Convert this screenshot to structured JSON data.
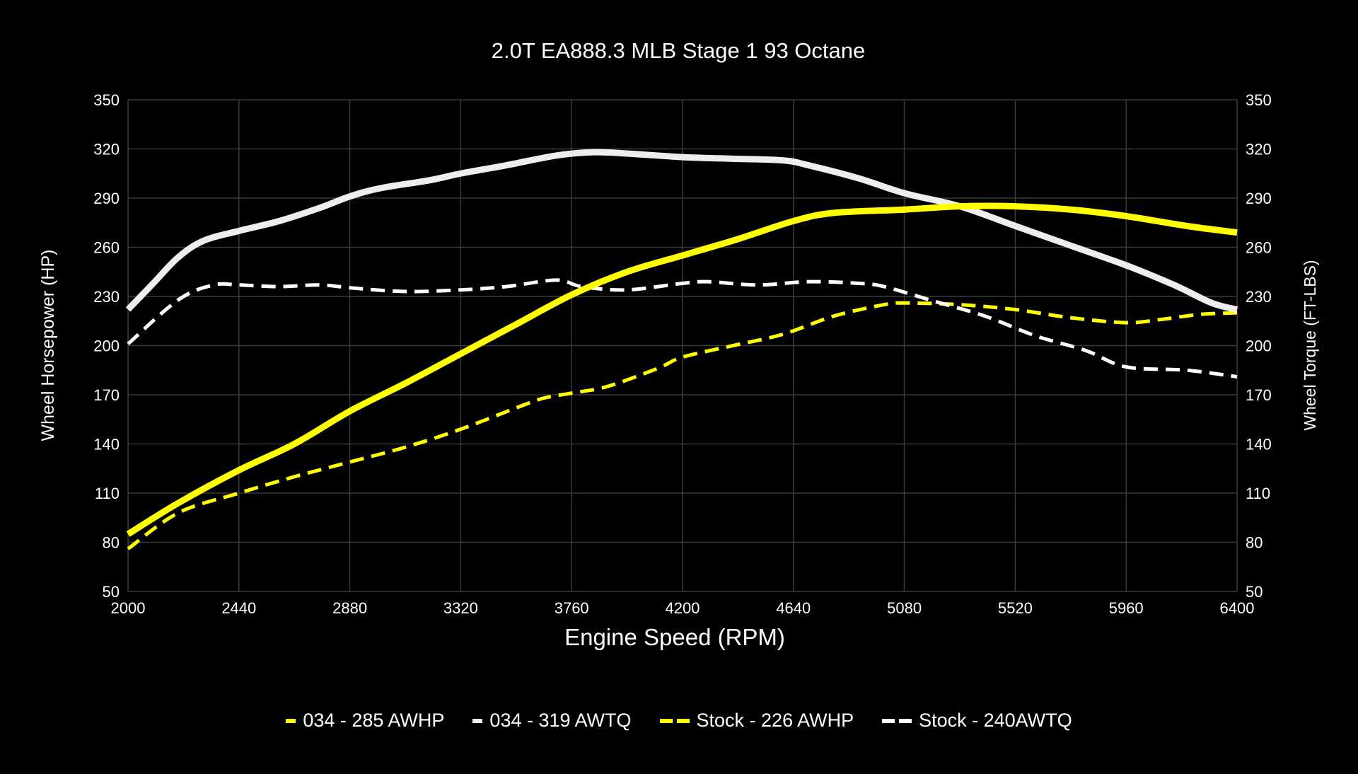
{
  "chart_data": {
    "type": "line",
    "title": "2.0T EA888.3 MLB Stage 1 93 Octane",
    "xlabel": "Engine Speed (RPM)",
    "ylabel": "Wheel Horsepower (HP)",
    "ylabel_right": "Wheel Torque (FT-LBS)",
    "xlim": [
      2000,
      6400
    ],
    "ylim": [
      50,
      350
    ],
    "ylim_right": [
      50,
      350
    ],
    "x_ticks": [
      2000,
      2440,
      2880,
      3320,
      3760,
      4200,
      4640,
      5080,
      5520,
      5960,
      6400
    ],
    "y_ticks": [
      50,
      80,
      110,
      140,
      170,
      200,
      230,
      260,
      290,
      320,
      350
    ],
    "grid": true,
    "legend_position": "bottom",
    "background": "#000000",
    "series": [
      {
        "name": "034 - 285 AWHP",
        "color": "#ffff00",
        "style": "solid",
        "axis": "left",
        "points": [
          [
            2000,
            85
          ],
          [
            2200,
            104
          ],
          [
            2440,
            124
          ],
          [
            2660,
            140
          ],
          [
            2880,
            160
          ],
          [
            3100,
            177
          ],
          [
            3320,
            195
          ],
          [
            3540,
            213
          ],
          [
            3760,
            231
          ],
          [
            3980,
            245
          ],
          [
            4200,
            255
          ],
          [
            4420,
            265
          ],
          [
            4640,
            276
          ],
          [
            4800,
            281
          ],
          [
            5080,
            283
          ],
          [
            5300,
            285
          ],
          [
            5520,
            285
          ],
          [
            5740,
            283
          ],
          [
            5960,
            279
          ],
          [
            6200,
            273
          ],
          [
            6400,
            269
          ]
        ]
      },
      {
        "name": "034 - 319 AWTQ",
        "color": "#eeeeee",
        "style": "solid",
        "axis": "right",
        "points": [
          [
            2000,
            222
          ],
          [
            2100,
            238
          ],
          [
            2200,
            254
          ],
          [
            2300,
            264
          ],
          [
            2440,
            270
          ],
          [
            2600,
            276
          ],
          [
            2760,
            284
          ],
          [
            2880,
            291
          ],
          [
            3000,
            296
          ],
          [
            3200,
            301
          ],
          [
            3320,
            305
          ],
          [
            3500,
            310
          ],
          [
            3700,
            316
          ],
          [
            3850,
            318
          ],
          [
            4000,
            317
          ],
          [
            4200,
            315
          ],
          [
            4400,
            314
          ],
          [
            4600,
            313
          ],
          [
            4700,
            310
          ],
          [
            4900,
            302
          ],
          [
            5080,
            293
          ],
          [
            5300,
            285
          ],
          [
            5520,
            273
          ],
          [
            5740,
            261
          ],
          [
            5960,
            249
          ],
          [
            6150,
            237
          ],
          [
            6300,
            226
          ],
          [
            6400,
            222
          ]
        ]
      },
      {
        "name": "Stock - 226 AWHP",
        "color": "#ffff00",
        "style": "dashed",
        "axis": "left",
        "points": [
          [
            2000,
            76
          ],
          [
            2200,
            98
          ],
          [
            2440,
            110
          ],
          [
            2660,
            120
          ],
          [
            2880,
            129
          ],
          [
            3100,
            138
          ],
          [
            3320,
            149
          ],
          [
            3540,
            162
          ],
          [
            3650,
            168
          ],
          [
            3760,
            171
          ],
          [
            3900,
            175
          ],
          [
            4100,
            186
          ],
          [
            4200,
            193
          ],
          [
            4400,
            200
          ],
          [
            4600,
            207
          ],
          [
            4800,
            218
          ],
          [
            5000,
            225
          ],
          [
            5080,
            226
          ],
          [
            5300,
            225
          ],
          [
            5520,
            222
          ],
          [
            5740,
            217
          ],
          [
            5960,
            214
          ],
          [
            6100,
            216
          ],
          [
            6250,
            219
          ],
          [
            6400,
            220
          ]
        ]
      },
      {
        "name": "Stock - 240AWTQ",
        "color": "#ffffff",
        "style": "dashed",
        "axis": "right",
        "points": [
          [
            2000,
            201
          ],
          [
            2200,
            228
          ],
          [
            2340,
            237
          ],
          [
            2440,
            237
          ],
          [
            2600,
            236
          ],
          [
            2760,
            237
          ],
          [
            2900,
            235
          ],
          [
            3100,
            233
          ],
          [
            3320,
            234
          ],
          [
            3500,
            236
          ],
          [
            3700,
            240
          ],
          [
            3800,
            236
          ],
          [
            3980,
            234
          ],
          [
            4200,
            238
          ],
          [
            4300,
            239
          ],
          [
            4500,
            237
          ],
          [
            4700,
            239
          ],
          [
            4900,
            238
          ],
          [
            5000,
            236
          ],
          [
            5200,
            227
          ],
          [
            5400,
            218
          ],
          [
            5600,
            206
          ],
          [
            5800,
            197
          ],
          [
            5960,
            187
          ],
          [
            6200,
            185
          ],
          [
            6400,
            181
          ]
        ]
      }
    ]
  }
}
